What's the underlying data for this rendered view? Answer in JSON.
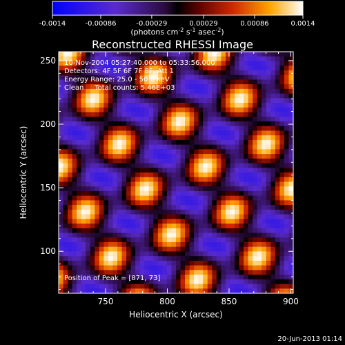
{
  "chart_data": {
    "type": "heatmap",
    "title": "Reconstructed RHESSI Image",
    "xlabel": "Heliocentric X (arcsec)",
    "ylabel": "Heliocentric Y (arcsec)",
    "xlim": [
      712,
      902
    ],
    "ylim": [
      67,
      257
    ],
    "x_ticks": [
      750,
      800,
      850,
      900
    ],
    "y_ticks": [
      100,
      150,
      200,
      250
    ],
    "colorbar": {
      "min": -0.0014,
      "max": 0.0014,
      "ticks": [
        -0.0014,
        -0.00086,
        -0.00029,
        0.00029,
        0.00086,
        0.0014
      ],
      "tick_labels": [
        "-0.0014",
        "-0.00086",
        "-0.00029",
        "0.00029",
        "0.00086",
        "0.0014"
      ],
      "unit_parts": [
        "(photons cm",
        "-2",
        " s",
        "-1",
        " asec",
        "-2",
        ")"
      ]
    },
    "annotations": {
      "time": "10-Nov-2004 05:27:40.000 to 05:33:56.000",
      "detectors": "Detectors: 4F 5F 6F 7F 8F, Att 1",
      "energy": "Energy Range: 25.0 - 50.0 keV",
      "clean": "Clean     Total counts: 5.46E+03",
      "peak": "Position of Peak = [871, 73]"
    },
    "footer_date": "20-Jun-2013 01:14"
  }
}
